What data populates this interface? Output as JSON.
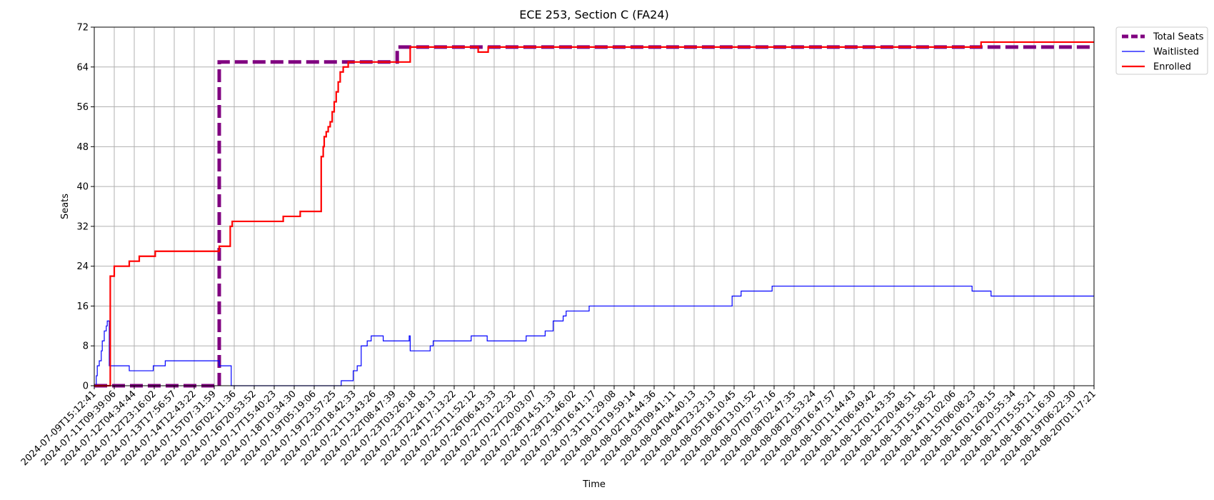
{
  "chart_data": {
    "type": "line",
    "title": "ECE 253, Section C (FA24)",
    "xlabel": "Time",
    "ylabel": "Seats",
    "ylim": [
      0,
      72
    ],
    "yticks": [
      0,
      8,
      16,
      24,
      32,
      40,
      48,
      56,
      64,
      72
    ],
    "grid": true,
    "legend_position": "outside-top-right",
    "x_ticks": [
      "2024-07-09T15:12:41",
      "2024-07-11T09:39:06",
      "2024-07-12T04:34:44",
      "2024-07-12T23:16:02",
      "2024-07-13T17:56:57",
      "2024-07-14T12:43:22",
      "2024-07-15T07:31:59",
      "2024-07-16T02:11:36",
      "2024-07-16T20:53:52",
      "2024-07-17T15:40:23",
      "2024-07-18T10:34:30",
      "2024-07-19T05:19:06",
      "2024-07-19T23:57:25",
      "2024-07-20T18:42:33",
      "2024-07-21T13:43:26",
      "2024-07-22T08:47:39",
      "2024-07-23T03:26:18",
      "2024-07-23T22:18:13",
      "2024-07-24T17:13:22",
      "2024-07-25T11:52:12",
      "2024-07-26T06:43:33",
      "2024-07-27T01:22:32",
      "2024-07-27T20:03:07",
      "2024-07-28T14:51:33",
      "2024-07-29T21:46:02",
      "2024-07-30T16:41:17",
      "2024-07-31T11:29:08",
      "2024-08-01T19:59:14",
      "2024-08-02T14:44:36",
      "2024-08-03T09:41:11",
      "2024-08-04T04:40:13",
      "2024-08-04T23:23:13",
      "2024-08-05T18:10:45",
      "2024-08-06T13:01:52",
      "2024-08-07T07:57:16",
      "2024-08-08T02:47:35",
      "2024-08-08T21:53:24",
      "2024-08-09T16:47:57",
      "2024-08-10T11:44:43",
      "2024-08-11T06:49:42",
      "2024-08-12T01:43:35",
      "2024-08-12T20:48:51",
      "2024-08-13T15:58:52",
      "2024-08-14T11:02:06",
      "2024-08-15T06:08:23",
      "2024-08-16T01:28:15",
      "2024-08-16T20:55:34",
      "2024-08-17T15:55:21",
      "2024-08-18T11:16:30",
      "2024-08-19T06:22:30",
      "2024-08-20T01:17:21"
    ],
    "series": [
      {
        "name": "Total Seats",
        "color": "#800080",
        "style": "dashed",
        "step": true,
        "points": [
          [
            0,
            0
          ],
          [
            6.25,
            0
          ],
          [
            6.25,
            65
          ],
          [
            15.15,
            65
          ],
          [
            15.15,
            68
          ],
          [
            50,
            68
          ]
        ]
      },
      {
        "name": "Waitlisted",
        "color": "#0000ff",
        "style": "solid",
        "step": true,
        "points": [
          [
            0,
            0
          ],
          [
            0.1,
            2
          ],
          [
            0.15,
            4
          ],
          [
            0.25,
            5
          ],
          [
            0.35,
            7
          ],
          [
            0.4,
            9
          ],
          [
            0.5,
            11
          ],
          [
            0.6,
            12
          ],
          [
            0.65,
            13
          ],
          [
            0.75,
            4
          ],
          [
            1.75,
            3
          ],
          [
            2.95,
            4
          ],
          [
            3.55,
            5
          ],
          [
            6.25,
            4
          ],
          [
            6.85,
            0
          ],
          [
            12.35,
            1
          ],
          [
            12.95,
            3
          ],
          [
            13.15,
            4
          ],
          [
            13.35,
            8
          ],
          [
            13.65,
            9
          ],
          [
            13.85,
            10
          ],
          [
            14.45,
            9
          ],
          [
            15.75,
            10
          ],
          [
            15.8,
            7
          ],
          [
            16.8,
            8
          ],
          [
            16.95,
            9
          ],
          [
            18.85,
            10
          ],
          [
            19.65,
            9
          ],
          [
            21.6,
            10
          ],
          [
            22.55,
            11
          ],
          [
            22.95,
            13
          ],
          [
            23.45,
            14
          ],
          [
            23.6,
            15
          ],
          [
            24.75,
            16
          ],
          [
            31.9,
            18
          ],
          [
            32.35,
            19
          ],
          [
            33.9,
            20
          ],
          [
            43.9,
            19
          ],
          [
            44.85,
            18
          ],
          [
            50,
            18
          ]
        ]
      },
      {
        "name": "Enrolled",
        "color": "#ff0000",
        "style": "solid",
        "step": true,
        "points": [
          [
            0,
            0
          ],
          [
            0.75,
            0
          ],
          [
            0.8,
            22
          ],
          [
            1.0,
            24
          ],
          [
            1.75,
            25
          ],
          [
            2.25,
            26
          ],
          [
            3.05,
            27
          ],
          [
            6.25,
            28
          ],
          [
            6.8,
            32
          ],
          [
            6.9,
            33
          ],
          [
            9.45,
            34
          ],
          [
            10.3,
            35
          ],
          [
            11.35,
            46
          ],
          [
            11.45,
            48
          ],
          [
            11.5,
            50
          ],
          [
            11.6,
            51
          ],
          [
            11.7,
            52
          ],
          [
            11.8,
            53
          ],
          [
            11.9,
            55
          ],
          [
            12.0,
            57
          ],
          [
            12.1,
            59
          ],
          [
            12.2,
            61
          ],
          [
            12.3,
            63
          ],
          [
            12.45,
            64
          ],
          [
            12.7,
            65
          ],
          [
            15.8,
            68
          ],
          [
            19.2,
            67
          ],
          [
            19.7,
            68
          ],
          [
            44.35,
            69
          ],
          [
            50,
            69
          ]
        ]
      }
    ]
  }
}
